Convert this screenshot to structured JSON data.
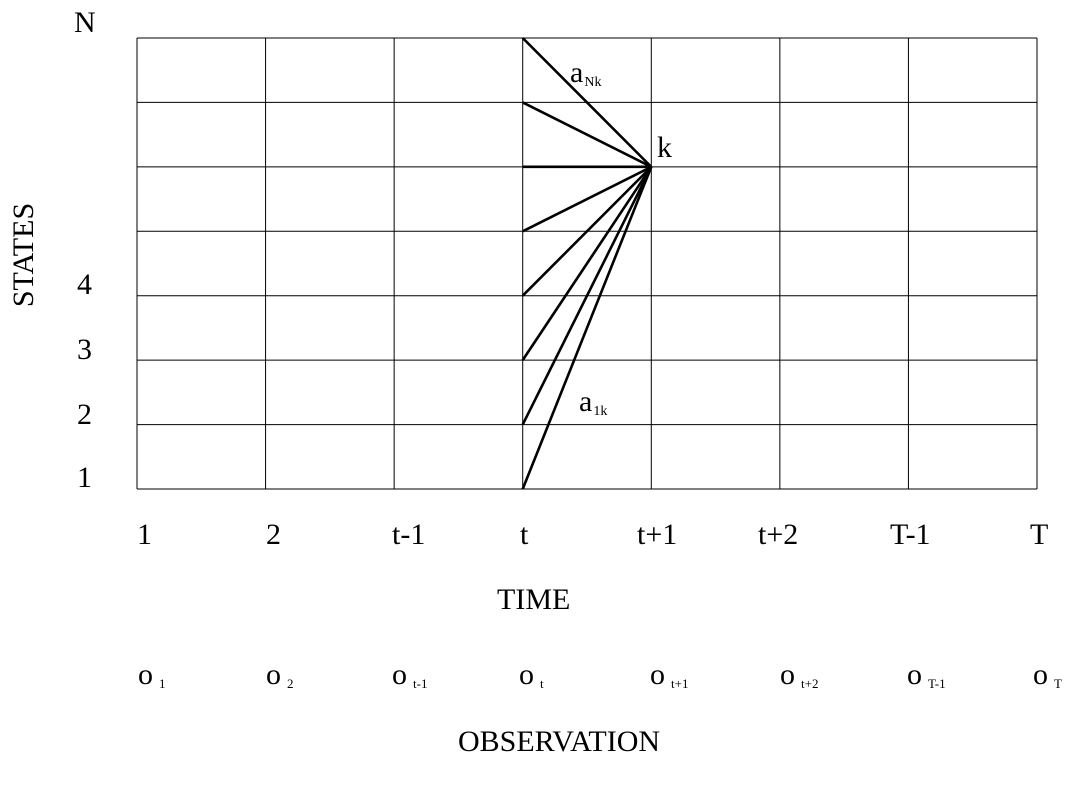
{
  "diagram": {
    "y_axis_label": "STATES",
    "x_axis_label": "TIME",
    "observation_label": "OBSERVATION",
    "state_labels": [
      "N",
      "4",
      "3",
      "2",
      "1"
    ],
    "time_labels": [
      "1",
      "2",
      "t-1",
      "t",
      "t+1",
      "t+2",
      "T-1",
      "T"
    ],
    "observations": [
      {
        "base": "o",
        "sub": "1"
      },
      {
        "base": "o",
        "sub": "2"
      },
      {
        "base": "o",
        "sub": "t-1"
      },
      {
        "base": "o",
        "sub": "t"
      },
      {
        "base": "o",
        "sub": "t+1"
      },
      {
        "base": "o",
        "sub": "t+2"
      },
      {
        "base": "o",
        "sub": "T-1"
      },
      {
        "base": "o",
        "sub": "T"
      }
    ],
    "target_state_label": "k",
    "transition_top": {
      "base": "a",
      "sub": "Nk"
    },
    "transition_bottom": {
      "base": "a",
      "sub": "1k"
    },
    "grid_columns": 7,
    "grid_rows": 7
  }
}
